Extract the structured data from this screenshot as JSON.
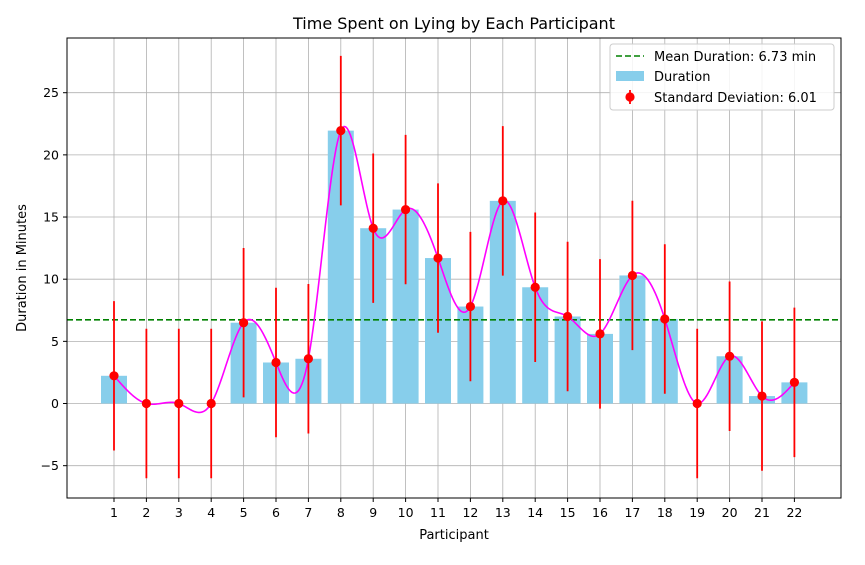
{
  "chart_data": {
    "type": "bar",
    "title": "Time Spent on Lying by Each Participant",
    "xlabel": "Participant",
    "ylabel": "Duration in Minutes",
    "categories": [
      "1",
      "2",
      "3",
      "4",
      "5",
      "6",
      "7",
      "8",
      "9",
      "10",
      "11",
      "12",
      "13",
      "14",
      "15",
      "16",
      "17",
      "18",
      "19",
      "20",
      "21",
      "22"
    ],
    "values": [
      2.23,
      0,
      0,
      0,
      6.5,
      3.3,
      3.6,
      21.95,
      14.1,
      15.6,
      11.7,
      7.8,
      16.3,
      9.35,
      7.0,
      5.6,
      10.3,
      6.8,
      0,
      3.8,
      0.6,
      1.7
    ],
    "error": 6.01,
    "mean": 6.73,
    "ylim": [
      -7.6,
      29.4
    ],
    "yticks": [
      -5,
      0,
      5,
      10,
      15,
      20,
      25
    ],
    "grid": true,
    "legend_position": "upper-right",
    "series": [
      {
        "name": "Mean Duration: 6.73 min",
        "kind": "dashed-line",
        "color": "#008000"
      },
      {
        "name": "Duration",
        "kind": "bar",
        "color": "#87ceeb"
      },
      {
        "name": "Standard Deviation: 6.01",
        "kind": "errorbar",
        "color": "#ff0000"
      }
    ],
    "colors": {
      "bar": "#87ceeb",
      "errorbar": "#ff0000",
      "mean_line": "#008000",
      "smooth_curve": "#ff00ff",
      "grid": "#b0b0b0"
    }
  }
}
